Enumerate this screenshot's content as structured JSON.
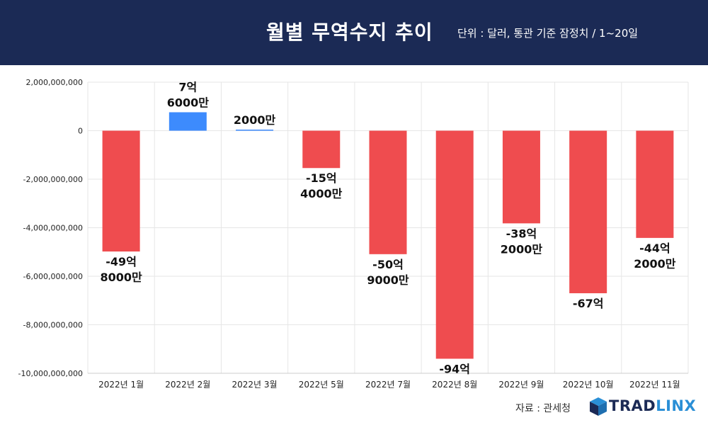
{
  "header": {
    "title": "월별 무역수지 추이",
    "subtitle": "단위 : 달러, 통관 기준 잠정치 / 1~20일"
  },
  "footer": {
    "source": "자료 : 관세청",
    "logo_text_a": "TRAD",
    "logo_text_b": "LINX"
  },
  "colors": {
    "header_bg": "#1b2a55",
    "positive": "#3d8bfd",
    "negative": "#ef4c4f",
    "grid": "#e6e6e6"
  },
  "chart_data": {
    "type": "bar",
    "categories": [
      "2022년 1월",
      "2022년 2월",
      "2022년 3월",
      "2022년 5월",
      "2022년 7월",
      "2022년 8월",
      "2022년 9월",
      "2022년 10월",
      "2022년 11월"
    ],
    "values": [
      -4980000000,
      760000000,
      20000000,
      -1540000000,
      -5090000000,
      -9400000000,
      -3820000000,
      -6700000000,
      -4420000000
    ],
    "data_labels": [
      [
        "-49억",
        "8000만"
      ],
      [
        "7억",
        "6000만"
      ],
      [
        "2000만"
      ],
      [
        "-15억",
        "4000만"
      ],
      [
        "-50억",
        "9000만"
      ],
      [
        "-94억"
      ],
      [
        "-38억",
        "2000만"
      ],
      [
        "-67억"
      ],
      [
        "-44억",
        "2000만"
      ]
    ],
    "ylim": [
      -10000000000,
      2000000000
    ],
    "yticks": [
      2000000000,
      0,
      -2000000000,
      -4000000000,
      -6000000000,
      -8000000000,
      -10000000000
    ],
    "ytick_labels": [
      "2,000,000,000",
      "0",
      "-2,000,000,000",
      "-4,000,000,000",
      "-6,000,000,000",
      "-8,000,000,000",
      "-10,000,000,000"
    ],
    "grid": true
  }
}
